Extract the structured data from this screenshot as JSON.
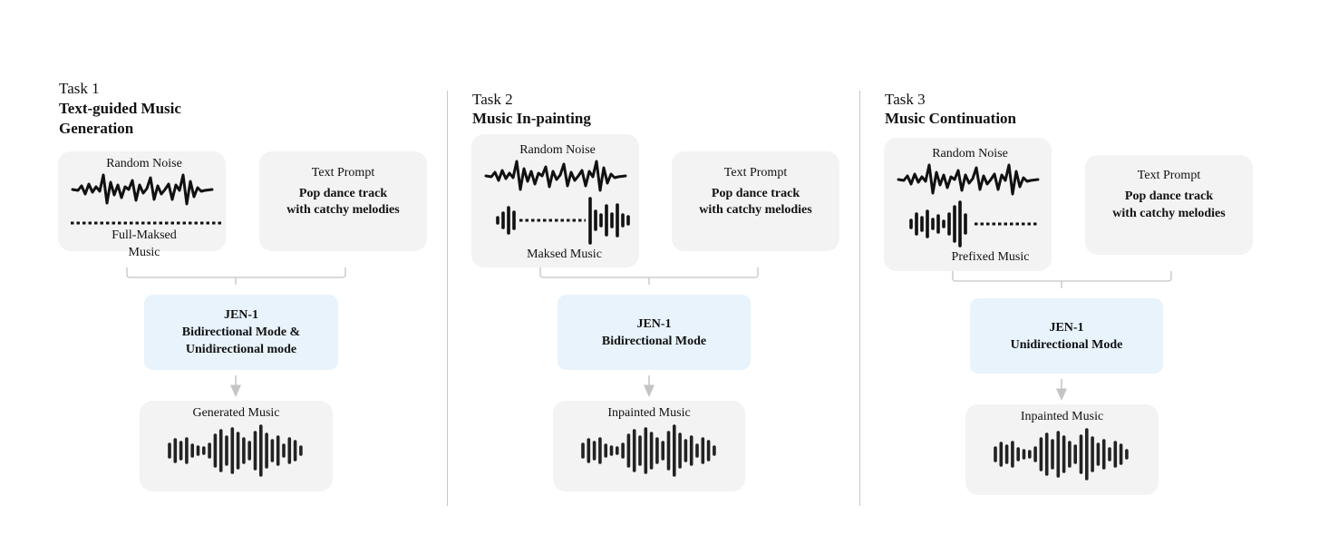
{
  "tasks": [
    {
      "number": "Task 1",
      "title_line1": "Text-guided Music",
      "title_line2": "Generation",
      "input_noise_label": "Random Noise",
      "input_music_label_line1": "Full-Maksed",
      "input_music_label_line2": "Music",
      "prompt_label": "Text Prompt",
      "prompt_line1": "Pop dance track",
      "prompt_line2": "with catchy melodies",
      "model_line1": "JEN-1",
      "model_line2": "Bidirectional Mode &",
      "model_line3": "Unidirectional mode",
      "output_label": "Generated Music"
    },
    {
      "number": "Task 2",
      "title_line1": "Music In-painting",
      "input_noise_label": "Random Noise",
      "input_music_label": "Maksed Music",
      "prompt_label": "Text Prompt",
      "prompt_line1": "Pop dance track",
      "prompt_line2": "with catchy melodies",
      "model_line1": "JEN-1",
      "model_line2": "Bidirectional Mode",
      "output_label": "Inpainted Music"
    },
    {
      "number": "Task 3",
      "title_line1": "Music Continuation",
      "input_noise_label": "Random Noise",
      "input_music_label": "Prefixed Music",
      "prompt_label": "Text Prompt",
      "prompt_line1": "Pop dance track",
      "prompt_line2": "with catchy melodies",
      "model_line1": "JEN-1",
      "model_line2": "Unidirectional Mode",
      "output_label": "Inpainted Music"
    }
  ]
}
